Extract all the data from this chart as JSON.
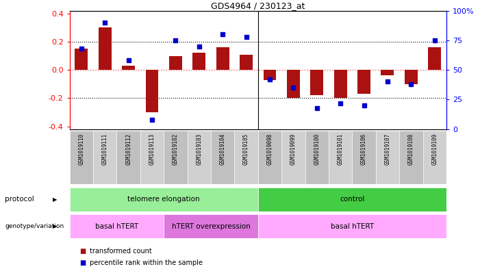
{
  "title": "GDS4964 / 230123_at",
  "samples": [
    "GSM1019110",
    "GSM1019111",
    "GSM1019112",
    "GSM1019113",
    "GSM1019102",
    "GSM1019103",
    "GSM1019104",
    "GSM1019105",
    "GSM1019098",
    "GSM1019099",
    "GSM1019100",
    "GSM1019101",
    "GSM1019106",
    "GSM1019107",
    "GSM1019108",
    "GSM1019109"
  ],
  "bar_values": [
    0.15,
    0.3,
    0.03,
    -0.3,
    0.1,
    0.12,
    0.16,
    0.11,
    -0.07,
    -0.2,
    -0.18,
    -0.2,
    -0.17,
    -0.04,
    -0.1,
    0.16
  ],
  "percentile_values": [
    68,
    90,
    58,
    8,
    75,
    70,
    80,
    78,
    42,
    35,
    18,
    22,
    20,
    40,
    38,
    75
  ],
  "ylim": [
    -0.42,
    0.42
  ],
  "yticks": [
    -0.4,
    -0.2,
    0.0,
    0.2,
    0.4
  ],
  "bar_color": "#AA1111",
  "dot_color": "#0000CC",
  "dotted_line_color": "#000000",
  "zero_line_color": "#FF4444",
  "protocol_groups": [
    {
      "label": "telomere elongation",
      "start": 0,
      "end": 8,
      "color": "#99EE99"
    },
    {
      "label": "control",
      "start": 8,
      "end": 16,
      "color": "#44CC44"
    }
  ],
  "genotype_groups": [
    {
      "label": "basal hTERT",
      "start": 0,
      "end": 4,
      "color": "#FFAAFF"
    },
    {
      "label": "hTERT overexpression",
      "start": 4,
      "end": 8,
      "color": "#DD77DD"
    },
    {
      "label": "basal hTERT",
      "start": 8,
      "end": 16,
      "color": "#FFAAFF"
    }
  ],
  "legend_items": [
    {
      "label": "transformed count",
      "color": "#AA1111"
    },
    {
      "label": "percentile rank within the sample",
      "color": "#0000CC"
    }
  ],
  "right_yticks": [
    0,
    25,
    50,
    75,
    100
  ],
  "right_yticklabels": [
    "0",
    "25",
    "50",
    "75",
    "100%"
  ]
}
